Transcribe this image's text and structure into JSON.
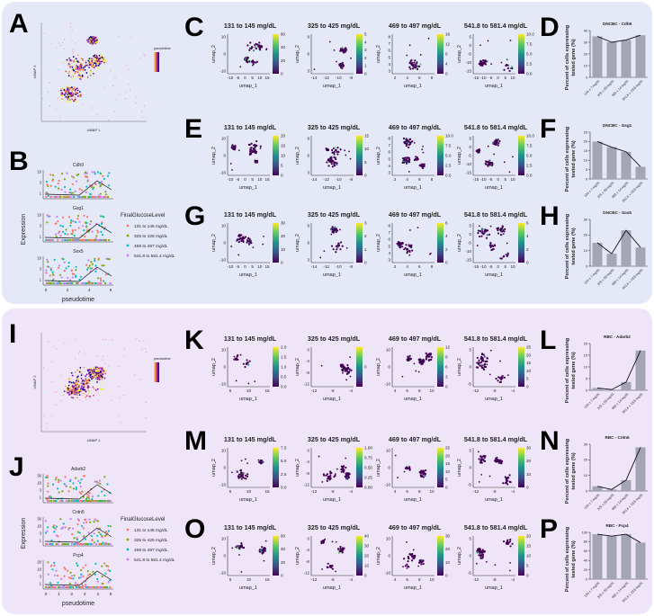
{
  "colors": {
    "top_background": "#e5e9f7",
    "bottom_background": "#eee5f8",
    "bar_fill": "#a4a4b4",
    "viridis": [
      "#440154",
      "#3b528b",
      "#21918c",
      "#5ec962",
      "#fde725"
    ],
    "plasma": [
      "#0d0887",
      "#7e03a8",
      "#cc4778",
      "#f89540",
      "#f0f921"
    ],
    "groups": [
      "#f8766d",
      "#7cae00",
      "#00bfc4",
      "#c77cff"
    ]
  },
  "top": {
    "overview": {
      "letter": "A",
      "xlabel": "UMAP 1",
      "ylabel": "UMAP 2",
      "legend": "pseudotime"
    },
    "trajectory": {
      "letter": "B",
      "ylabel": "Expression",
      "xlabel": "pseudotime",
      "xticks": [
        "0",
        "2",
        "4",
        "6"
      ],
      "genes": [
        {
          "name": "Cdh9",
          "yticks": [
            "1",
            "3",
            "10"
          ]
        },
        {
          "name": "Gsg1",
          "yticks": [
            "1",
            "3",
            "10"
          ]
        },
        {
          "name": "Sox5",
          "yticks": [
            "1",
            "3",
            "10"
          ]
        }
      ],
      "legend_title": "FinalGlucoseLevel",
      "legend": [
        "131 to 145 mg/dL",
        "325 to 425 mg/dL",
        "469 to 497 mg/dL",
        "541.8 to 581.4 mg/dL"
      ]
    },
    "umap_rows": [
      {
        "letter": "C",
        "plots": [
          {
            "title": "131 to 145 mg/dL",
            "xticks": [
              "-10",
              "-5",
              "0",
              "5",
              "10",
              "15"
            ],
            "yticks": [
              "-10",
              "0",
              "10"
            ],
            "cbar": [
              "0",
              "20",
              "40",
              "60"
            ]
          },
          {
            "title": "325 to 425 mg/dL",
            "xticks": [
              "-14",
              "-12",
              "-10",
              "-8"
            ],
            "yticks": [
              "3",
              "6",
              "9"
            ],
            "cbar": [
              "0",
              "1",
              "2",
              "3",
              "4",
              "5"
            ]
          },
          {
            "title": "469 to 497 mg/dL",
            "xticks": [
              "2",
              "4",
              "6",
              "8"
            ],
            "yticks": [
              "3",
              "4",
              "5",
              "6",
              "7",
              "8"
            ],
            "cbar": [
              "0",
              "4",
              "8",
              "12",
              "16"
            ]
          },
          {
            "title": "541.8 to 581.4 mg/dL",
            "xticks": [
              "-15",
              "-10",
              "-5",
              "0",
              "5",
              "10"
            ],
            "yticks": [
              "-15",
              "-10",
              "-5",
              "0",
              "5"
            ],
            "cbar": [
              "0.0",
              "2.5",
              "5.0",
              "7.5",
              "10.0"
            ]
          }
        ]
      },
      {
        "letter": "E",
        "plots": [
          {
            "title": "131 to 145 mg/dL",
            "xticks": [
              "-10",
              "-5",
              "0",
              "5",
              "10",
              "15"
            ],
            "yticks": [
              "-10",
              "0",
              "10"
            ],
            "cbar": [
              "0",
              "5",
              "10",
              "15",
              "20"
            ]
          },
          {
            "title": "325 to 425 mg/dL",
            "xticks": [
              "-14",
              "-12",
              "-10",
              "-8"
            ],
            "yticks": [
              "3",
              "6",
              "9"
            ],
            "cbar": [
              "0",
              "5",
              "10",
              "15"
            ]
          },
          {
            "title": "469 to 497 mg/dL",
            "xticks": [
              "2",
              "4",
              "6",
              "8"
            ],
            "yticks": [
              "3",
              "4",
              "5",
              "6",
              "7",
              "8"
            ],
            "cbar": [
              "0.0",
              "2.5",
              "5.0",
              "7.5",
              "10.0"
            ]
          },
          {
            "title": "541.8 to 581.4 mg/dL",
            "xticks": [
              "-15",
              "-10",
              "-5",
              "0",
              "5",
              "10"
            ],
            "yticks": [
              "-15",
              "-10",
              "-5",
              "0",
              "5"
            ],
            "cbar": [
              "0.0",
              "2.5",
              "5.0",
              "7.5",
              "10.0"
            ]
          }
        ]
      },
      {
        "letter": "G",
        "plots": [
          {
            "title": "131 to 145 mg/dL",
            "xticks": [
              "-10",
              "-5",
              "0",
              "5",
              "10",
              "15"
            ],
            "yticks": [
              "-10",
              "0",
              "10"
            ],
            "cbar": [
              "0",
              "10",
              "20",
              "30"
            ]
          },
          {
            "title": "325 to 425 mg/dL",
            "xticks": [
              "-14",
              "-12",
              "-10",
              "-8"
            ],
            "yticks": [
              "3",
              "6",
              "9"
            ],
            "cbar": [
              "0",
              "1",
              "2",
              "3"
            ]
          },
          {
            "title": "469 to 497 mg/dL",
            "xticks": [
              "2",
              "4",
              "6",
              "8"
            ],
            "yticks": [
              "3",
              "4",
              "5",
              "6",
              "7",
              "8"
            ],
            "cbar": [
              "0",
              "2",
              "4",
              "6"
            ]
          },
          {
            "title": "541.8 to 581.4 mg/dL",
            "xticks": [
              "-15",
              "-10",
              "-5",
              "0",
              "5",
              "10"
            ],
            "yticks": [
              "-15",
              "-10",
              "-5",
              "0",
              "5"
            ],
            "cbar": [
              "0",
              "2",
              "4",
              "6"
            ]
          }
        ]
      }
    ]
  },
  "bottom": {
    "overview": {
      "letter": "I",
      "xlabel": "UMAP 1",
      "ylabel": "UMAP 2",
      "legend": "pseudotime"
    },
    "trajectory": {
      "letter": "J",
      "ylabel": "Expression",
      "xlabel": "pseudotime",
      "xticks": [
        "0",
        "1",
        "2",
        "3",
        "4",
        "5"
      ],
      "genes": [
        {
          "name": "Adarb2",
          "yticks": [
            "1",
            "3",
            "10",
            "30"
          ]
        },
        {
          "name": "Cntn5",
          "yticks": [
            "1",
            "3",
            "10",
            "30"
          ]
        },
        {
          "name": "Pcp4",
          "yticks": [
            "1",
            "3",
            "10",
            "20"
          ]
        }
      ],
      "legend_title": "FinalGlucoseLevel",
      "legend": [
        "131 to 145 mg/dL",
        "325 to 425 mg/dL",
        "469 to 497 mg/dL",
        "541.8 to 581.4 mg/dL"
      ]
    },
    "umap_rows": [
      {
        "letter": "K",
        "plots": [
          {
            "title": "131 to 145 mg/dL",
            "xticks": [
              "5",
              "10",
              "15"
            ],
            "yticks": [
              "-10",
              "0",
              "10"
            ],
            "cbar": [
              "0.0",
              "0.5",
              "1.0",
              "1.5",
              "2.0"
            ]
          },
          {
            "title": "325 to 425 mg/dL",
            "xticks": [
              "-12",
              "-8",
              "-4"
            ],
            "yticks": [
              "-12",
              "-8",
              "-4",
              "0"
            ],
            "cbar": [
              "0"
            ]
          },
          {
            "title": "469 to 497 mg/dL",
            "xticks": [
              "4",
              "6",
              "8",
              "10"
            ],
            "yticks": [
              "-10",
              "0",
              "10"
            ],
            "cbar": [
              "0",
              "3",
              "6",
              "9",
              "12"
            ]
          },
          {
            "title": "541.8 to 581.4 mg/dL",
            "xticks": [
              "-12",
              "-8",
              "-4"
            ],
            "yticks": [
              "-5",
              "0",
              "5"
            ],
            "cbar": [
              "0",
              "5",
              "10",
              "15",
              "20",
              "25"
            ]
          }
        ]
      },
      {
        "letter": "M",
        "plots": [
          {
            "title": "131 to 145 mg/dL",
            "xticks": [
              "5",
              "10",
              "15"
            ],
            "yticks": [
              "-10",
              "0",
              "10"
            ],
            "cbar": [
              "0.0",
              "2.5",
              "5.0",
              "7.5"
            ]
          },
          {
            "title": "325 to 425 mg/dL",
            "xticks": [
              "-12",
              "-8",
              "-4"
            ],
            "yticks": [
              "-12",
              "-8",
              "-4",
              "0"
            ],
            "cbar": [
              "0.00",
              "0.25",
              "0.50",
              "0.75",
              "1.00"
            ]
          },
          {
            "title": "469 to 497 mg/dL",
            "xticks": [
              "4",
              "6",
              "8",
              "10"
            ],
            "yticks": [
              "-10",
              "0",
              "10"
            ],
            "cbar": [
              "0",
              "5",
              "10",
              "15",
              "20",
              "25"
            ]
          },
          {
            "title": "541.8 to 581.4 mg/dL",
            "xticks": [
              "-12",
              "-8",
              "-4"
            ],
            "yticks": [
              "-5",
              "0",
              "5"
            ],
            "cbar": [
              "0",
              "10",
              "20",
              "30"
            ]
          }
        ]
      },
      {
        "letter": "O",
        "plots": [
          {
            "title": "131 to 145 mg/dL",
            "xticks": [
              "5",
              "10",
              "15"
            ],
            "yticks": [
              "-10",
              "0",
              "10"
            ],
            "cbar": [
              "0",
              "20",
              "40",
              "60"
            ]
          },
          {
            "title": "325 to 425 mg/dL",
            "xticks": [
              "-12",
              "-8",
              "-4"
            ],
            "yticks": [
              "-12",
              "-8",
              "-4",
              "0"
            ],
            "cbar": [
              "0",
              "10",
              "20",
              "30",
              "40"
            ]
          },
          {
            "title": "469 to 497 mg/dL",
            "xticks": [
              "4",
              "6",
              "8",
              "10"
            ],
            "yticks": [
              "-10",
              "0",
              "10"
            ],
            "cbar": [
              "0",
              "10",
              "20",
              "30"
            ]
          },
          {
            "title": "541.8 to 581.4 mg/dL",
            "xticks": [
              "-12",
              "-8",
              "-4"
            ],
            "yticks": [
              "-5",
              "0",
              "5"
            ],
            "cbar": [
              "0",
              "5",
              "10",
              "15",
              "20"
            ]
          }
        ]
      }
    ]
  },
  "chart_data": [
    {
      "letter": "D",
      "type": "bar",
      "title": "ONCBC - Cdh9",
      "ylabel": "Percent of cells expressing tested gene (%)",
      "categories": [
        "136 ± 7 mg/dL",
        "375 ± 50 mg/dL",
        "483 ± 14 mg/dL",
        "561.6 ± 19.8 mg/dL"
      ],
      "values": [
        35,
        30,
        32,
        36
      ],
      "ylim": [
        0,
        40
      ],
      "yticks": [
        "0",
        "10",
        "20",
        "30",
        "40"
      ]
    },
    {
      "letter": "F",
      "type": "bar",
      "title": "ONCBC - Gsg1",
      "ylabel": "Percent of cells expressing tested gene (%)",
      "categories": [
        "136 ± 7 mg/dL",
        "375 ± 50 mg/dL",
        "483 ± 14 mg/dL",
        "561.6 ± 19.8 mg/dL"
      ],
      "values": [
        20,
        17,
        14.5,
        6.5
      ],
      "ylim": [
        0,
        25
      ],
      "yticks": [
        "0",
        "5",
        "10",
        "15",
        "20",
        "25"
      ]
    },
    {
      "letter": "H",
      "type": "bar",
      "title": "ONCBC - Sox5",
      "ylabel": "Percent of cells expressing tested gene (%)",
      "categories": [
        "136 ± 7 mg/dL",
        "375 ± 50 mg/dL",
        "483 ± 14 mg/dL",
        "561.6 ± 19.8 mg/dL"
      ],
      "values": [
        15,
        8,
        23,
        12
      ],
      "ylim": [
        0,
        30
      ],
      "yticks": [
        "0",
        "10",
        "20",
        "30"
      ]
    },
    {
      "letter": "L",
      "type": "bar",
      "title": "RBC - Adarb2",
      "ylabel": "Percent of cells expressing tested gene (%)",
      "categories": [
        "136 ± 7 mg/dL",
        "375 ± 50 mg/dL",
        "483 ± 14 mg/dL",
        "561.6 ± 19.8 mg/dL"
      ],
      "values": [
        1,
        0.3,
        3.5,
        17
      ],
      "ylim": [
        0,
        20
      ],
      "yticks": [
        "0",
        "5",
        "10",
        "15",
        "20"
      ]
    },
    {
      "letter": "N",
      "type": "bar",
      "title": "RBC - Cntn5",
      "ylabel": "Percent of cells expressing tested gene (%)",
      "categories": [
        "136 ± 7 mg/dL",
        "375 ± 50 mg/dL",
        "483 ± 14 mg/dL",
        "561.6 ± 19.8 mg/dL"
      ],
      "values": [
        3,
        1,
        7,
        28
      ],
      "ylim": [
        0,
        30
      ],
      "yticks": [
        "0",
        "10",
        "20",
        "30"
      ]
    },
    {
      "letter": "P",
      "type": "bar",
      "title": "RBC - Pcp4",
      "ylabel": "Percent of cells expressing tested gene (%)",
      "categories": [
        "136 ± 7 mg/dL",
        "375 ± 50 mg/dL",
        "483 ± 14 mg/dL",
        "561.6 ± 19.8 mg/dL"
      ],
      "values": [
        96,
        92,
        96,
        78
      ],
      "ylim": [
        0,
        100
      ],
      "yticks": [
        "0",
        "20",
        "40",
        "60",
        "80",
        "100"
      ]
    }
  ]
}
